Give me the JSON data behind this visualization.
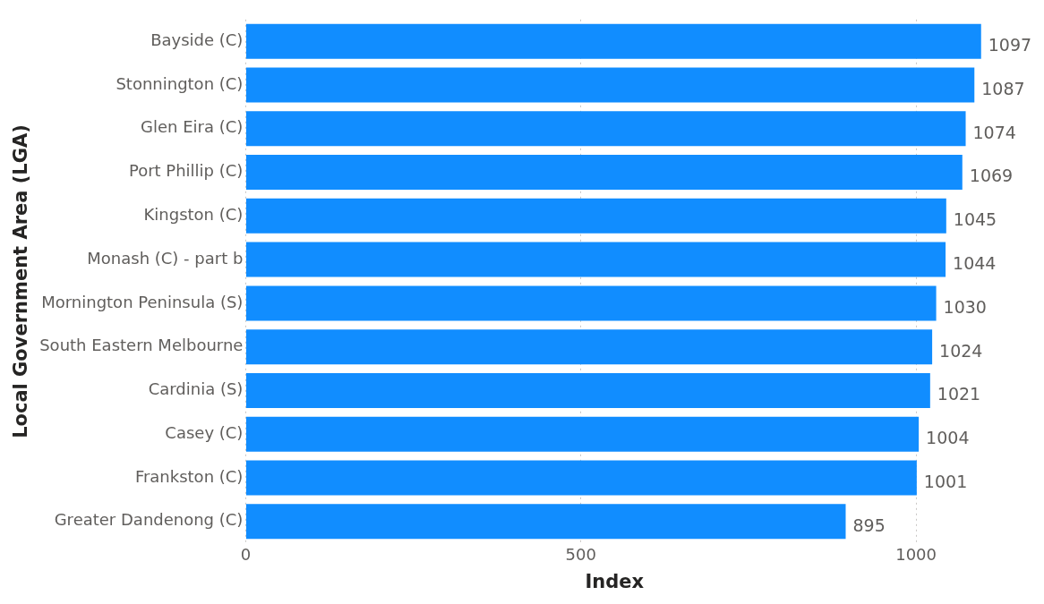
{
  "chart_data": {
    "type": "bar",
    "orientation": "horizontal",
    "xlabel": "Index",
    "ylabel": "Local Government Area (LGA)",
    "categories": [
      "Bayside (C)",
      "Stonnington (C)",
      "Glen Eira (C)",
      "Port Phillip (C)",
      "Kingston (C)",
      "Monash (C) - part b",
      "Mornington Peninsula (S)",
      "South Eastern Melbourne",
      "Cardinia (S)",
      "Casey (C)",
      "Frankston (C)",
      "Greater Dandenong (C)"
    ],
    "values": [
      1097,
      1087,
      1074,
      1069,
      1045,
      1044,
      1030,
      1024,
      1021,
      1004,
      1001,
      895
    ],
    "color": "#118dff",
    "xlim": [
      0,
      1100
    ],
    "xticks": [
      0,
      500,
      1000
    ],
    "grid": "x",
    "data_labels": true
  }
}
